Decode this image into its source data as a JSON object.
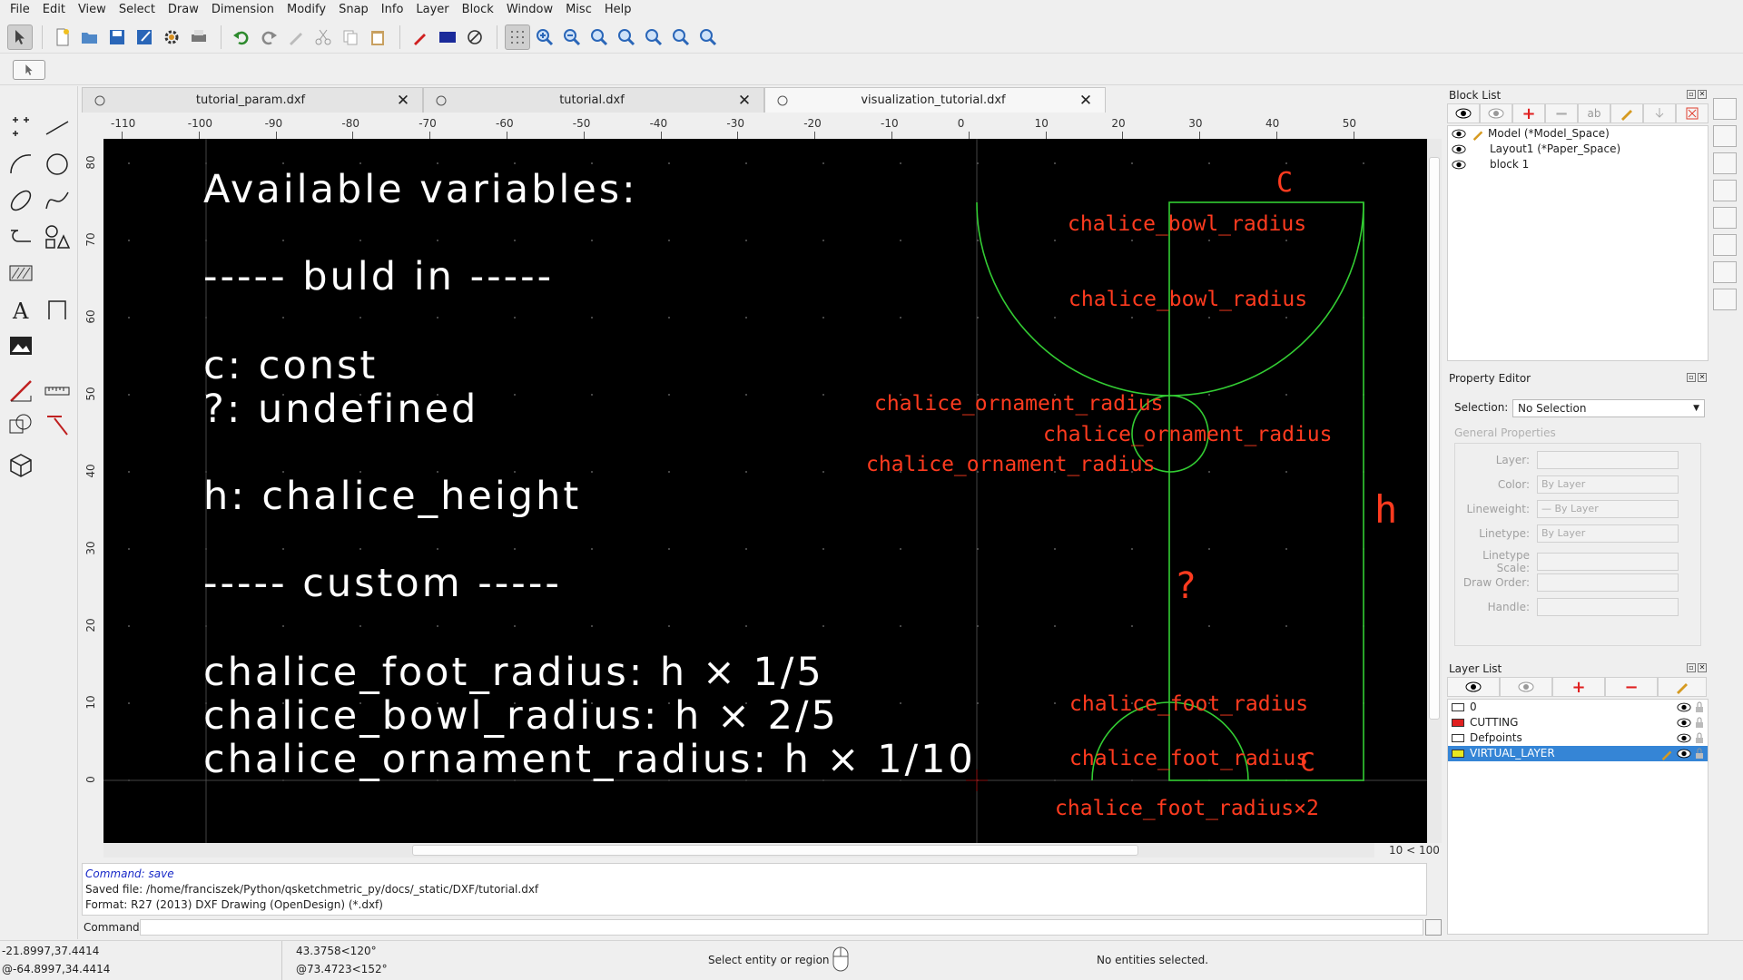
{
  "menu": [
    "File",
    "Edit",
    "View",
    "Select",
    "Draw",
    "Dimension",
    "Modify",
    "Snap",
    "Info",
    "Layer",
    "Block",
    "Window",
    "Misc",
    "Help"
  ],
  "tabs": [
    {
      "label": "tutorial_param.dxf",
      "active": false
    },
    {
      "label": "tutorial.dxf",
      "active": false
    },
    {
      "label": "visualization_tutorial.dxf",
      "active": true
    }
  ],
  "ruler": {
    "h_ticks": [
      "-110",
      "-100",
      "-90",
      "-80",
      "-70",
      "-60",
      "-50",
      "-40",
      "-30",
      "-20",
      "-10",
      "0",
      "10",
      "20",
      "30",
      "40",
      "50"
    ],
    "v_ticks": [
      "80",
      "70",
      "60",
      "50",
      "40",
      "30",
      "20",
      "10",
      "0"
    ]
  },
  "drawing": {
    "notes": [
      "Available variables:",
      "----- buld in -----",
      "c: const",
      "?: undefined",
      "h: chalice_height",
      "----- custom -----",
      "chalice_foot_radius: h × 1/5",
      "chalice_bowl_radius: h × 2/5",
      "chalice_ornament_radius: h × 1/10"
    ],
    "labels": {
      "c_top": "C",
      "bowl_1": "chalice_bowl_radius",
      "bowl_2": "chalice_bowl_radius",
      "orn_1": "chalice_ornament_radius",
      "orn_2": "chalice_ornament_radius",
      "orn_3": "chalice_ornament_radius",
      "h": "h",
      "q": "?",
      "foot_1": "chalice_foot_radius",
      "foot_2": "chalice_foot_radius",
      "c_bottom": "C",
      "foot_3": "chalice_foot_radius×2"
    },
    "colors": {
      "text": "#ffffff",
      "label": "#ff3b1f",
      "geometry": "#33cc33"
    }
  },
  "grid_info": "10 < 100",
  "command": {
    "history_label": "Command:",
    "history_value": "save",
    "line2": "Saved file: /home/franciszek/Python/qsketchmetric_py/docs/_static/DXF/tutorial.dxf",
    "line3": "Format: R27 (2013) DXF Drawing (OpenDesign) (*.dxf)",
    "prompt": "Command:"
  },
  "status": {
    "abs_coord_1": "-21.8997,37.4414",
    "abs_coord_2": "@-64.8997,34.4414",
    "rel_coord_1": "43.3758<120°",
    "rel_coord_2": "@73.4723<152°",
    "prompt": "Select entity or region",
    "selection": "No entities selected."
  },
  "block_list": {
    "title": "Block List",
    "items": [
      "Model (*Model_Space)",
      "Layout1 (*Paper_Space)",
      "block 1"
    ]
  },
  "property_editor": {
    "title": "Property Editor",
    "selection_label": "Selection:",
    "selection_value": "No Selection",
    "group": "General Properties",
    "props": [
      {
        "label": "Layer:",
        "value": ""
      },
      {
        "label": "Color:",
        "value": "By Layer"
      },
      {
        "label": "Lineweight:",
        "value": "— By Layer"
      },
      {
        "label": "Linetype:",
        "value": "By Layer"
      },
      {
        "label": "Linetype Scale:",
        "value": ""
      },
      {
        "label": "Draw Order:",
        "value": ""
      },
      {
        "label": "Handle:",
        "value": ""
      }
    ]
  },
  "layer_list": {
    "title": "Layer List",
    "layers": [
      {
        "name": "0",
        "color": "#ffffff"
      },
      {
        "name": "CUTTING",
        "color": "#e02020"
      },
      {
        "name": "Defpoints",
        "color": "#ffffff"
      },
      {
        "name": "VIRTUAL_LAYER",
        "color": "#e8e820",
        "selected": true
      }
    ]
  }
}
